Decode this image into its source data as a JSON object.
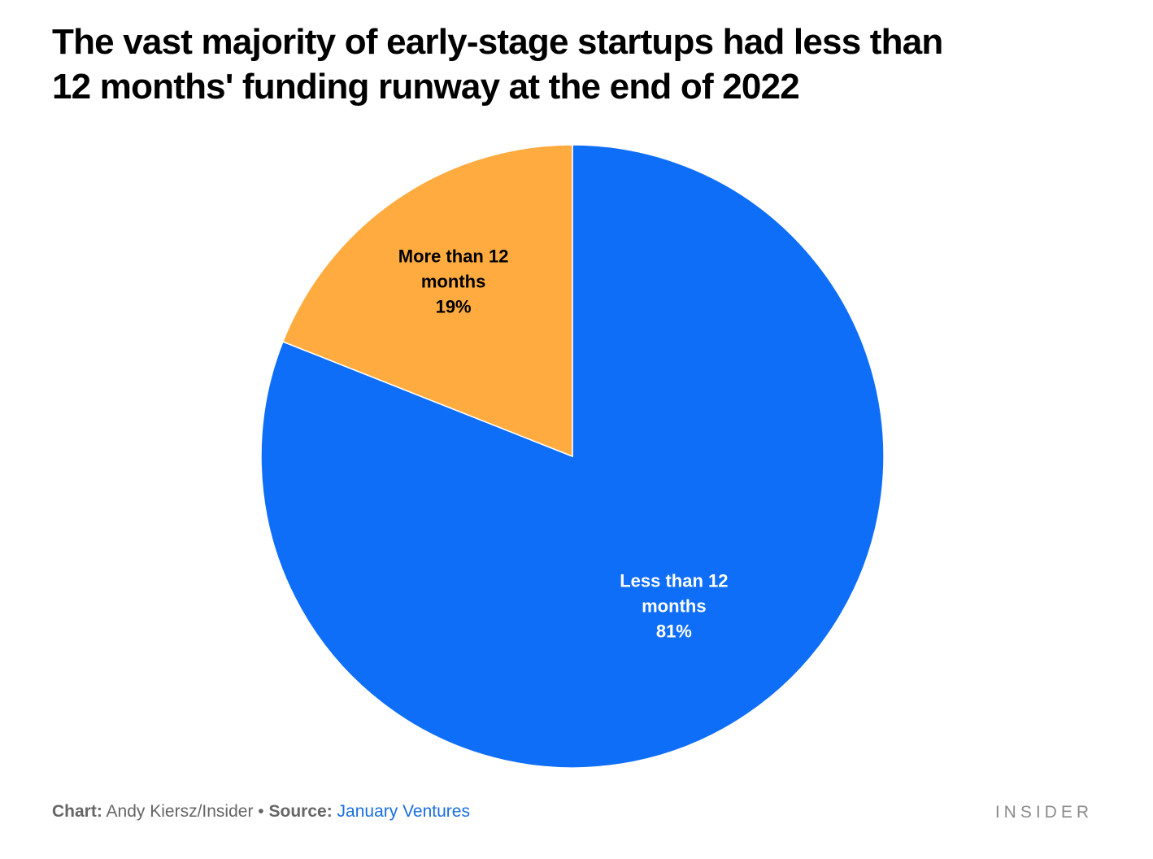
{
  "title": {
    "line1": "The vast majority of early-stage startups had less than",
    "line2": "12 months' funding runway at the end of 2022"
  },
  "chart_data": {
    "type": "pie",
    "title": "The vast majority of early-stage startups had less than 12 months' funding runway at the end of 2022",
    "slices": [
      {
        "name": "Less than 12 months",
        "value": 81,
        "label_lines": [
          "Less than 12",
          "months",
          "81%"
        ],
        "color": "#0f6ef7",
        "text_color": "#ffffff"
      },
      {
        "name": "More than 12 months",
        "value": 19,
        "label_lines": [
          "More than 12",
          "months",
          "19%"
        ],
        "color": "#ffab40",
        "text_color": "#000000"
      }
    ]
  },
  "footer": {
    "chart_label": "Chart:",
    "chart_author": "Andy Kiersz/Insider",
    "separator": "•",
    "source_label": "Source:",
    "source_name": "January Ventures"
  },
  "brand": "INSIDER"
}
